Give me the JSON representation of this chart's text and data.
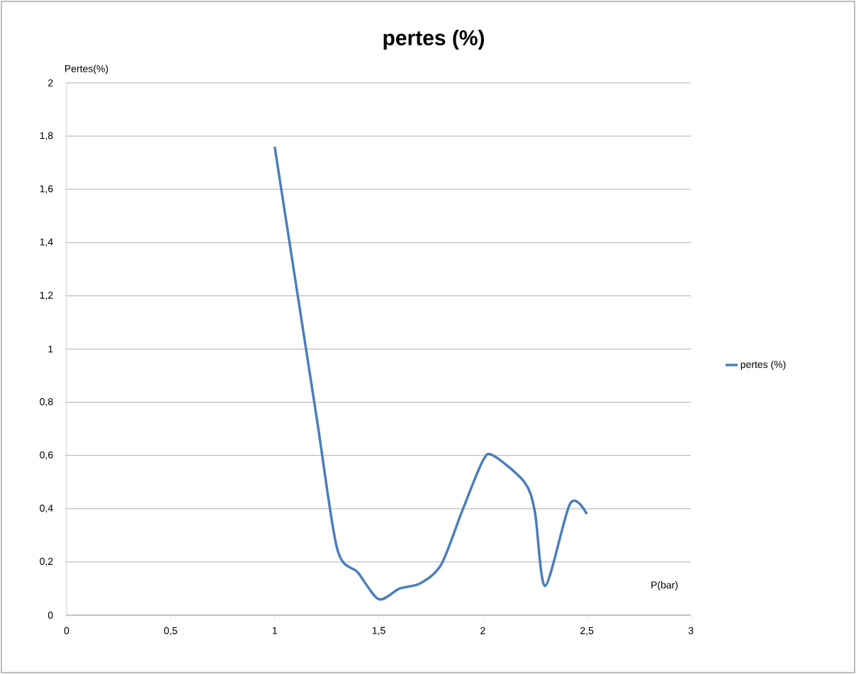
{
  "chart_data": {
    "type": "line",
    "title": "pertes (%)",
    "xlabel": "P(bar)",
    "ylabel": "Pertes(%)",
    "x": [
      1,
      1.2,
      1.3,
      1.4,
      1.5,
      1.6,
      1.7,
      1.8,
      1.9,
      2,
      2.05,
      2.2,
      2.25,
      2.3,
      2.42,
      2.5
    ],
    "series": [
      {
        "name": "pertes (%)",
        "color": "#4a7ebb",
        "values": [
          1.76,
          0.75,
          0.25,
          0.16,
          0.06,
          0.1,
          0.12,
          0.19,
          0.39,
          0.58,
          0.6,
          0.5,
          0.39,
          0.11,
          0.42,
          0.38
        ]
      }
    ],
    "xlim": [
      0,
      3
    ],
    "ylim": [
      0,
      2
    ],
    "xticks": [
      0,
      {
        "value": 0.5,
        "label": "0,5"
      },
      1,
      {
        "value": 1.5,
        "label": "1,5"
      },
      2,
      {
        "value": 2.5,
        "label": "2,5"
      },
      3
    ],
    "yticks": [
      0,
      {
        "value": 0.2,
        "label": "0,2"
      },
      {
        "value": 0.4,
        "label": "0,4"
      },
      {
        "value": 0.6,
        "label": "0,6"
      },
      {
        "value": 0.8,
        "label": "0,8"
      },
      1,
      {
        "value": 1.2,
        "label": "1,2"
      },
      {
        "value": 1.4,
        "label": "1,4"
      },
      {
        "value": 1.6,
        "label": "1,6"
      },
      {
        "value": 1.8,
        "label": "1,8"
      },
      2
    ],
    "grid": "y",
    "legend": "right",
    "marker": "none",
    "line_style": "solid"
  }
}
